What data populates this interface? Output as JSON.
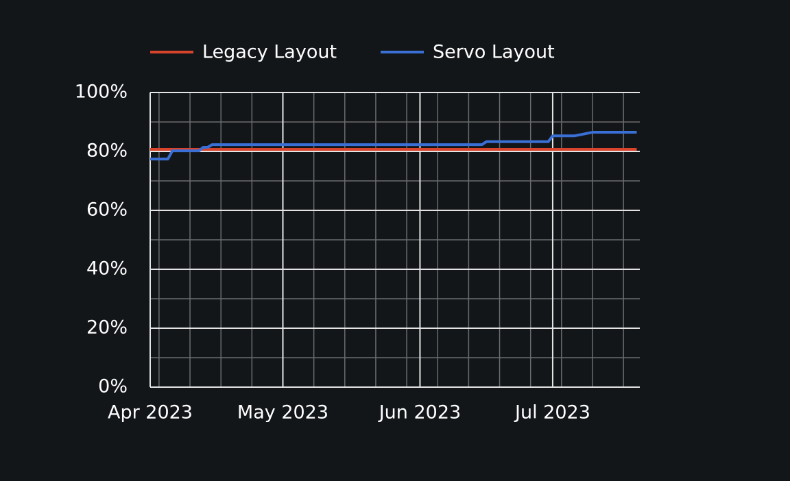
{
  "chart_data": {
    "type": "line",
    "xlim": [
      0,
      110.7
    ],
    "xticks": [
      {
        "value": 0,
        "label": "Apr 2023"
      },
      {
        "value": 30,
        "label": "May 2023"
      },
      {
        "value": 61,
        "label": "Jun 2023"
      },
      {
        "value": 91,
        "label": "Jul 2023"
      }
    ],
    "x_minor_ticks": [
      2,
      9,
      16,
      23,
      30,
      37,
      44,
      51,
      58,
      65,
      72,
      79,
      86,
      93,
      100,
      107
    ],
    "ylim": [
      0,
      100
    ],
    "yticks": [
      {
        "value": 0,
        "label": "0%"
      },
      {
        "value": 20,
        "label": "20%"
      },
      {
        "value": 40,
        "label": "40%"
      },
      {
        "value": 60,
        "label": "60%"
      },
      {
        "value": 80,
        "label": "80%"
      },
      {
        "value": 100,
        "label": "100%"
      }
    ],
    "y_minor_ticks": [
      10,
      30,
      50,
      70,
      90
    ],
    "grid": true,
    "legend": "top",
    "series": [
      {
        "name": "Legacy Layout",
        "color": "#d8432b",
        "x": [
          0,
          110
        ],
        "values": [
          80.7,
          80.7
        ]
      },
      {
        "name": "Servo Layout",
        "color": "#3a6fd6",
        "x": [
          0,
          4,
          5,
          11,
          12,
          13,
          14,
          75,
          76,
          90,
          91,
          96,
          100,
          110
        ],
        "values": [
          77.4,
          77.4,
          80.2,
          80.2,
          81.4,
          81.4,
          82.3,
          82.3,
          83.3,
          83.3,
          85.3,
          85.3,
          86.5,
          86.5
        ]
      }
    ]
  }
}
